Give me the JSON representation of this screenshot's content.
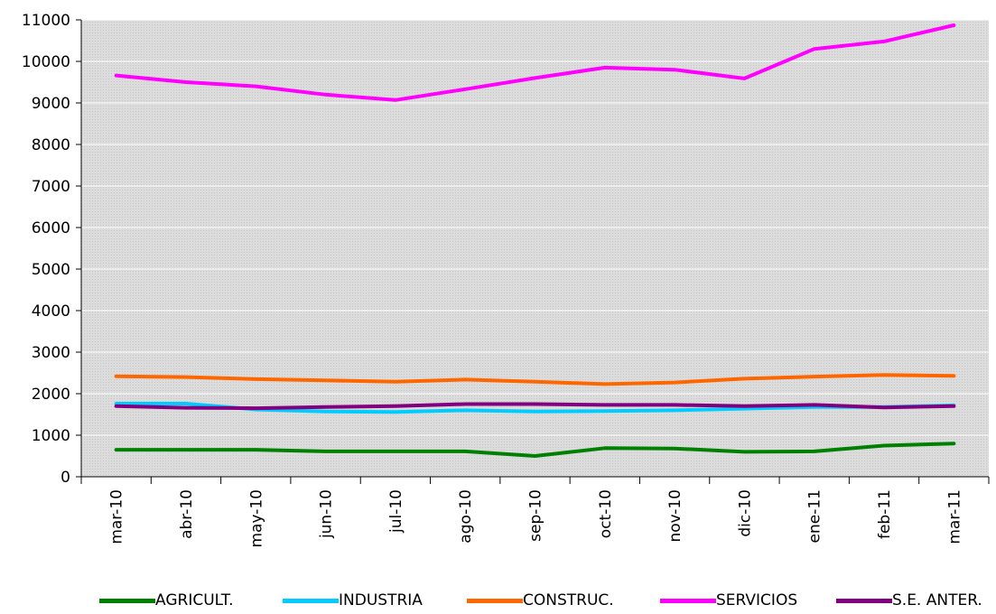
{
  "chart_data": {
    "type": "line",
    "categories": [
      "mar-10",
      "abr-10",
      "may-10",
      "jun-10",
      "jul-10",
      "ago-10",
      "sep-10",
      "oct-10",
      "nov-10",
      "dic-10",
      "ene-11",
      "feb-11",
      "mar-11"
    ],
    "ylim": [
      0,
      11000
    ],
    "yticks": [
      0,
      1000,
      2000,
      3000,
      4000,
      5000,
      6000,
      7000,
      8000,
      9000,
      10000,
      11000
    ],
    "ytick_labels": [
      "0",
      "1000",
      "2000",
      "3000",
      "4000",
      "5000",
      "6000",
      "7000",
      "8000",
      "9000",
      "10000",
      "11000"
    ],
    "grid": true,
    "legend_position": "bottom",
    "plot_background": "#d9d9d9",
    "series": [
      {
        "name": "AGRICULT.",
        "color": "#008000",
        "values": [
          650,
          650,
          650,
          610,
          610,
          610,
          500,
          690,
          680,
          600,
          610,
          750,
          800
        ]
      },
      {
        "name": "INDUSTRIA",
        "color": "#00ccff",
        "values": [
          1760,
          1760,
          1620,
          1570,
          1560,
          1600,
          1570,
          1580,
          1600,
          1640,
          1680,
          1680,
          1720
        ]
      },
      {
        "name": "CONSTRUC.",
        "color": "#ff6600",
        "values": [
          2420,
          2400,
          2350,
          2320,
          2290,
          2340,
          2290,
          2230,
          2270,
          2360,
          2410,
          2450,
          2430
        ]
      },
      {
        "name": "SERVICIOS",
        "color": "#ff00ff",
        "values": [
          9660,
          9500,
          9400,
          9200,
          9070,
          9330,
          9600,
          9850,
          9800,
          9590,
          10300,
          10480,
          10870
        ]
      },
      {
        "name": "S.E. ANTER.",
        "color": "#800080",
        "values": [
          1700,
          1660,
          1650,
          1680,
          1700,
          1750,
          1750,
          1730,
          1730,
          1700,
          1730,
          1670,
          1700
        ]
      }
    ]
  }
}
